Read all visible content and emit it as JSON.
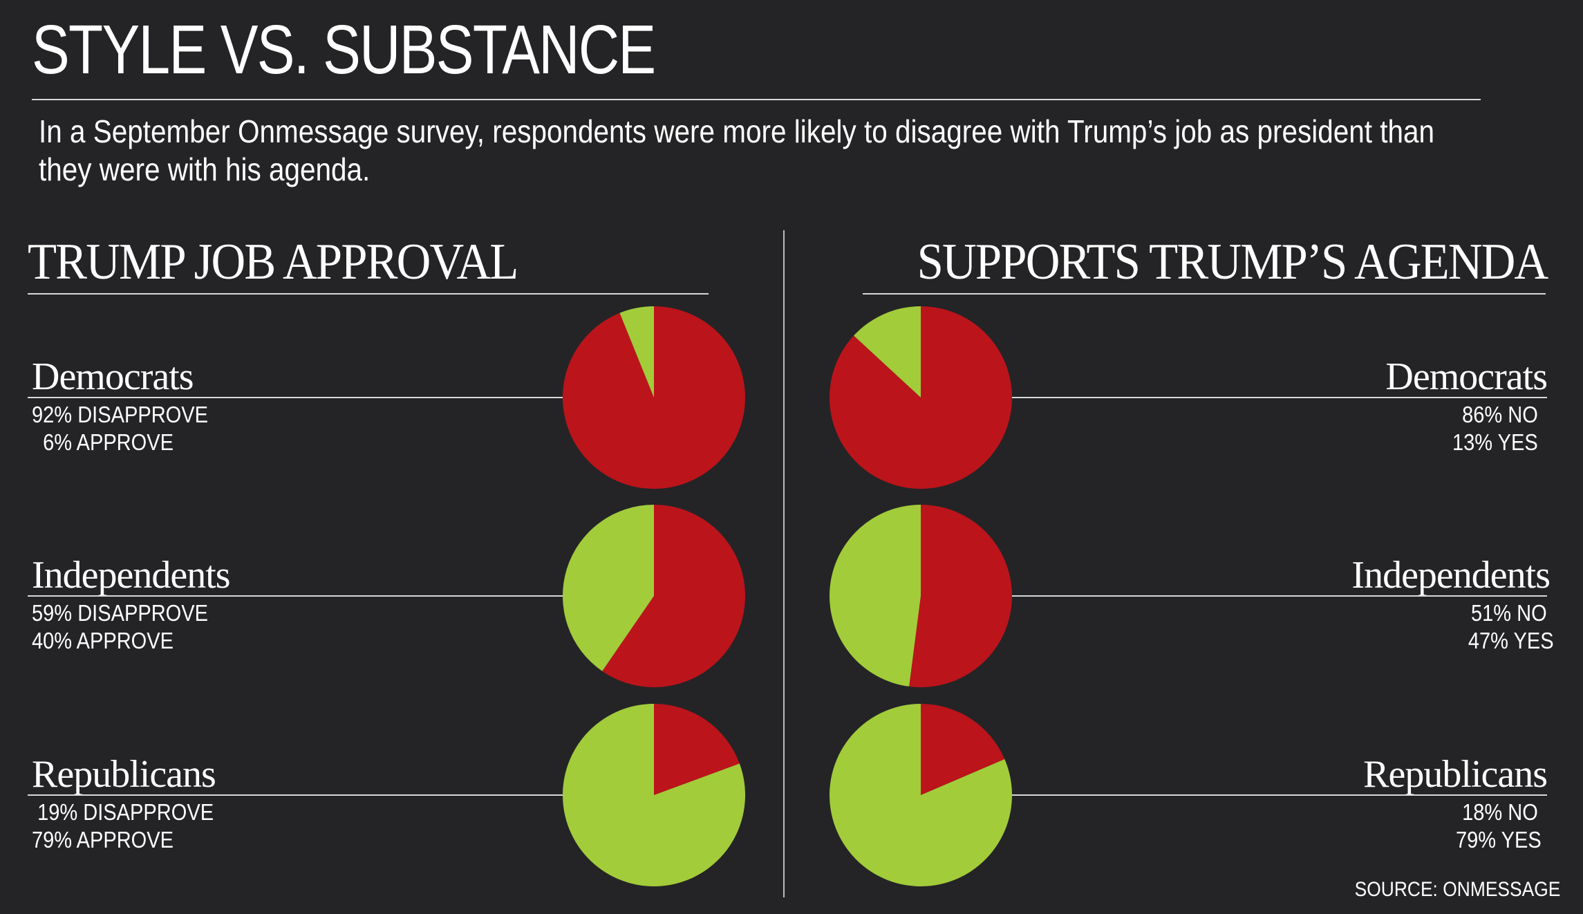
{
  "title": "STYLE VS. SUBSTANCE",
  "subtitle": "In a September Onmessage survey, respondents were more likely to disagree with Trump’s job as president than they were with his agenda.",
  "source": "SOURCE: ONMESSAGE",
  "colors": {
    "negative": "#bb141b",
    "positive": "#a2cc3a",
    "background": "#242426"
  },
  "chart_data": [
    {
      "type": "pie",
      "title": "TRUMP JOB APPROVAL",
      "groups": [
        {
          "name": "Democrats",
          "negative_label": "92% DISAPPROVE",
          "positive_label": "  6% APPROVE",
          "negative": 92,
          "positive": 6
        },
        {
          "name": "Independents",
          "negative_label": "59% DISAPPROVE",
          "positive_label": "40% APPROVE",
          "negative": 59,
          "positive": 40
        },
        {
          "name": "Republicans",
          "negative_label": " 19% DISAPPROVE",
          "positive_label": "79% APPROVE",
          "negative": 19,
          "positive": 79
        }
      ]
    },
    {
      "type": "pie",
      "title": "SUPPORTS TRUMP’S AGENDA",
      "groups": [
        {
          "name": "Democrats",
          "negative_label": "86% NO ",
          "positive_label": "13% YES ",
          "negative": 86,
          "positive": 13
        },
        {
          "name": "Independents",
          "negative_label": "51% NO",
          "positive_label": "47% YES",
          "negative": 51,
          "positive": 47
        },
        {
          "name": "Republicans",
          "negative_label": "18% NO ",
          "positive_label": "79% YES ",
          "negative": 18,
          "positive": 79
        }
      ]
    }
  ]
}
